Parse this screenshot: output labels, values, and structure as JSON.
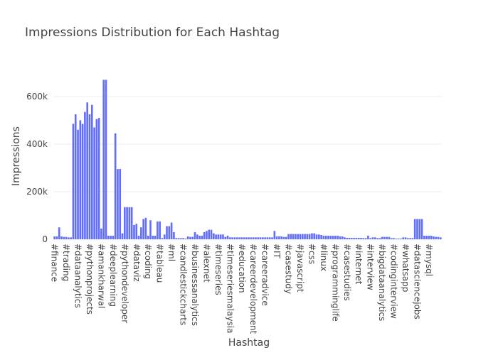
{
  "chart_data": {
    "type": "bar",
    "title": "Impressions Distribution for Each Hashtag",
    "x_label": "Hashtag",
    "y_label": "Impressions",
    "color": "#636efa",
    "grid": true,
    "ylim": [
      0,
      707000
    ],
    "yticks": [
      0,
      {
        "value": 200000,
        "label": "200k"
      },
      {
        "value": 400000,
        "label": "400k"
      },
      {
        "value": 600000,
        "label": "600k"
      }
    ],
    "categories": [
      "#finance",
      null,
      null,
      null,
      null,
      "#trading",
      null,
      null,
      null,
      null,
      "#dataanalytics",
      null,
      null,
      null,
      null,
      "#pythonprojects",
      null,
      null,
      null,
      null,
      "#amankharwal",
      null,
      null,
      null,
      null,
      "#deeplearning",
      null,
      null,
      null,
      null,
      "#pythondeveloper",
      null,
      null,
      null,
      null,
      "#dataviz",
      null,
      null,
      null,
      null,
      "#coding",
      null,
      null,
      null,
      null,
      "#tableau",
      null,
      null,
      null,
      null,
      "#ml",
      null,
      null,
      null,
      null,
      "#candlestickcharts",
      null,
      null,
      null,
      null,
      "#businessanalytics",
      null,
      null,
      null,
      null,
      "#alexnet",
      null,
      null,
      null,
      null,
      "#timeseries",
      null,
      null,
      null,
      null,
      "#timeseriesmalaysia",
      null,
      null,
      null,
      null,
      "#education",
      null,
      null,
      null,
      null,
      "#careerdevelopment",
      null,
      null,
      null,
      null,
      "#careeradvice",
      null,
      null,
      null,
      null,
      "#IT",
      null,
      null,
      null,
      null,
      "#casestudy",
      null,
      null,
      null,
      null,
      "#javascript",
      null,
      null,
      null,
      null,
      "#css",
      null,
      null,
      null,
      null,
      "#linux",
      null,
      null,
      null,
      null,
      "#programminglife",
      null,
      null,
      null,
      null,
      "#casestudies",
      null,
      null,
      null,
      null,
      "#internet",
      null,
      null,
      null,
      null,
      "#interview",
      null,
      null,
      null,
      null,
      "#bigdataanalytics",
      null,
      null,
      null,
      null,
      "#codinginterview",
      null,
      null,
      null,
      null,
      "#whatsapp",
      null,
      null,
      null,
      null,
      "#datasciencejobs",
      null,
      null,
      null,
      null,
      "#mysql",
      null,
      null,
      null,
      null,
      null
    ],
    "values": [
      12000,
      12000,
      50000,
      12000,
      10000,
      10000,
      8000,
      8000,
      485000,
      525000,
      460000,
      500000,
      485000,
      535000,
      575000,
      525000,
      565000,
      470000,
      505000,
      510000,
      45000,
      670000,
      670000,
      15000,
      15000,
      15000,
      445000,
      295000,
      295000,
      25000,
      135000,
      135000,
      135000,
      135000,
      60000,
      65000,
      15000,
      50000,
      85000,
      90000,
      15000,
      80000,
      15000,
      15000,
      75000,
      75000,
      5000,
      20000,
      55000,
      55000,
      70000,
      30000,
      5000,
      5000,
      5000,
      5000,
      3000,
      12000,
      10000,
      10000,
      30000,
      20000,
      15000,
      15000,
      30000,
      35000,
      40000,
      40000,
      25000,
      20000,
      20000,
      20000,
      20000,
      10000,
      15000,
      8000,
      8000,
      8000,
      8000,
      8000,
      8000,
      8000,
      8000,
      8000,
      8000,
      8000,
      8000,
      8000,
      8000,
      8000,
      8000,
      8000,
      8000,
      8000,
      35000,
      12000,
      12000,
      12000,
      10000,
      10000,
      22000,
      22000,
      22000,
      22000,
      22000,
      22000,
      22000,
      22000,
      22000,
      22000,
      25000,
      25000,
      20000,
      20000,
      18000,
      15000,
      15000,
      15000,
      15000,
      15000,
      15000,
      15000,
      12000,
      12000,
      8000,
      6000,
      6000,
      6000,
      6000,
      6000,
      6000,
      6000,
      5000,
      5000,
      15000,
      5000,
      8000,
      8000,
      5000,
      5000,
      10000,
      10000,
      10000,
      10000,
      5000,
      5000,
      3000,
      3000,
      3000,
      8000,
      8000,
      5000,
      5000,
      5000,
      85000,
      85000,
      85000,
      85000,
      15000,
      15000,
      15000,
      15000,
      12000,
      10000,
      10000,
      8000
    ]
  }
}
